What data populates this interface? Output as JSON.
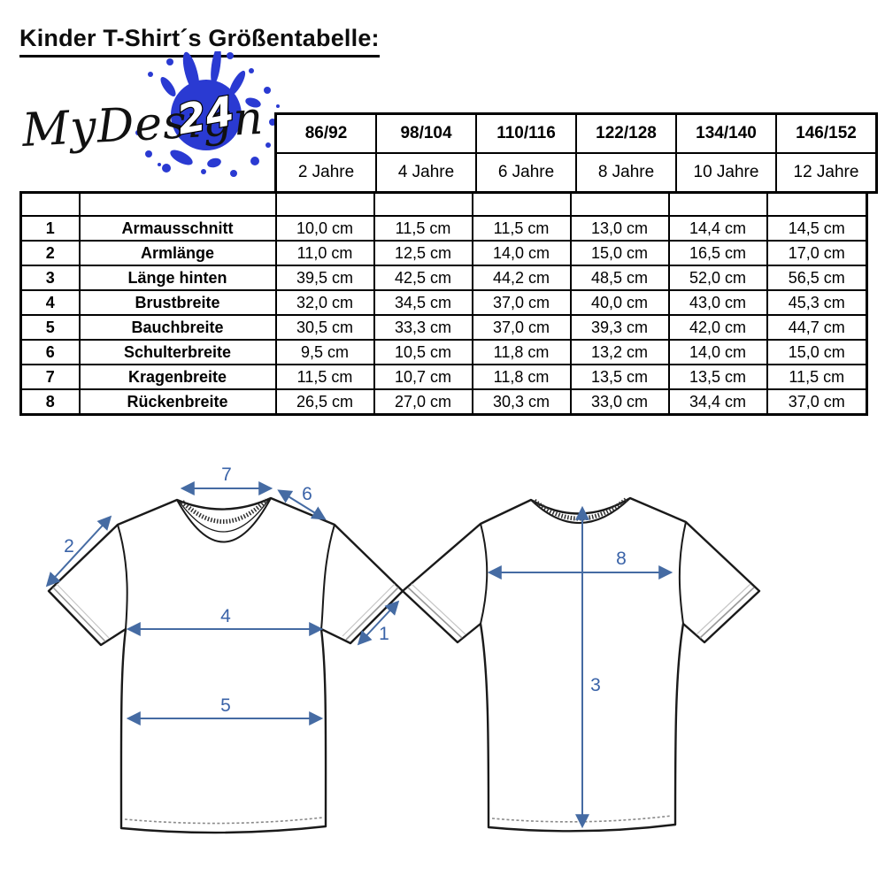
{
  "title": "Kinder T-Shirt´s Größentabelle:",
  "logo": {
    "brand": "MyDesign",
    "number": "24",
    "splash_color": "#2a3ad2"
  },
  "size_table": {
    "sizes": [
      "86/92",
      "98/104",
      "110/116",
      "122/128",
      "134/140",
      "146/152"
    ],
    "ages": [
      "2 Jahre",
      "4 Jahre",
      "6 Jahre",
      "8 Jahre",
      "10 Jahre",
      "12 Jahre"
    ],
    "rows": [
      {
        "num": "1",
        "label": "Armausschnitt",
        "values": [
          "10,0 cm",
          "11,5 cm",
          "11,5 cm",
          "13,0 cm",
          "14,4 cm",
          "14,5 cm"
        ]
      },
      {
        "num": "2",
        "label": "Armlänge",
        "values": [
          "11,0 cm",
          "12,5 cm",
          "14,0 cm",
          "15,0 cm",
          "16,5 cm",
          "17,0 cm"
        ]
      },
      {
        "num": "3",
        "label": "Länge hinten",
        "values": [
          "39,5 cm",
          "42,5 cm",
          "44,2 cm",
          "48,5 cm",
          "52,0 cm",
          "56,5 cm"
        ]
      },
      {
        "num": "4",
        "label": "Brustbreite",
        "values": [
          "32,0 cm",
          "34,5 cm",
          "37,0 cm",
          "40,0 cm",
          "43,0 cm",
          "45,3 cm"
        ]
      },
      {
        "num": "5",
        "label": "Bauchbreite",
        "values": [
          "30,5 cm",
          "33,3 cm",
          "37,0 cm",
          "39,3 cm",
          "42,0 cm",
          "44,7 cm"
        ]
      },
      {
        "num": "6",
        "label": "Schulterbreite",
        "values": [
          "9,5 cm",
          "10,5 cm",
          "11,8 cm",
          "13,2 cm",
          "14,0 cm",
          "15,0 cm"
        ]
      },
      {
        "num": "7",
        "label": "Kragenbreite",
        "values": [
          "11,5 cm",
          "10,7 cm",
          "11,8 cm",
          "13,5 cm",
          "13,5 cm",
          "11,5 cm"
        ]
      },
      {
        "num": "8",
        "label": "Rückenbreite",
        "values": [
          "26,5 cm",
          "27,0 cm",
          "30,3 cm",
          "33,0 cm",
          "34,4 cm",
          "37,0 cm"
        ]
      }
    ]
  },
  "diagram": {
    "arrow_color": "#456ba3",
    "label_color": "#3a63a8",
    "front": {
      "kragenbreite": "7",
      "schulterbreite": "6",
      "armlaenge": "2",
      "brustbreite": "4",
      "armausschnitt": "1",
      "bauchbreite": "5"
    },
    "back": {
      "rueckenbreite": "8",
      "laenge_hinten": "3"
    }
  }
}
